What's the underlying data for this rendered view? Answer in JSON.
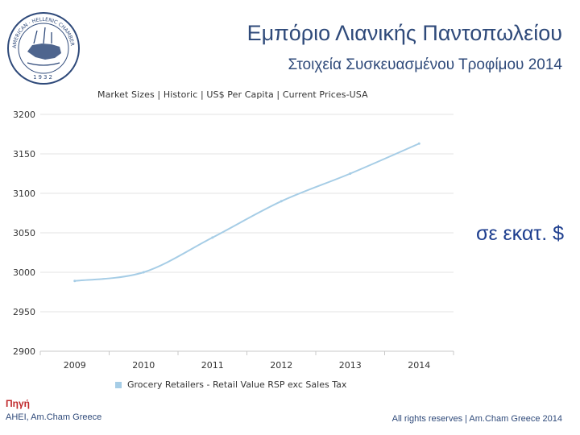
{
  "header": {
    "title": "Εμπόριο Λιανικής Παντοπωλείου",
    "subtitle": "Στοιχεία Συσκευασμένου Τροφίμου 2014"
  },
  "logo": {
    "text": "AMERICAN · HELLENIC CHAMBER OF COMMERCE",
    "year": "1932"
  },
  "units_label": "σε εκατ. $",
  "footer": {
    "source_label": "Πηγή",
    "source_text": "AHEI, Am.Cham Greece",
    "rights": "All rights reserves | Am.Cham Greece 2014"
  },
  "colors": {
    "line": "#a6cde6",
    "header_text": "#2f4a7a",
    "source_label": "#c0292c",
    "units_text": "#1f3f8f"
  },
  "chart_data": {
    "type": "line",
    "title": "Market Sizes | Historic | US$ Per Capita | Current Prices-USA",
    "x": [
      "2009",
      "2010",
      "2011",
      "2012",
      "2013",
      "2014"
    ],
    "series": [
      {
        "name": "Grocery Retailers - Retail Value RSP exc Sales Tax",
        "values": [
          2989,
          3000,
          3044,
          3090,
          3125,
          3163
        ]
      }
    ],
    "y_ticks": [
      2900,
      2950,
      3000,
      3050,
      3100,
      3150,
      3200
    ],
    "ylim": [
      2900,
      3200
    ],
    "grid": true,
    "legend": "bottom"
  }
}
